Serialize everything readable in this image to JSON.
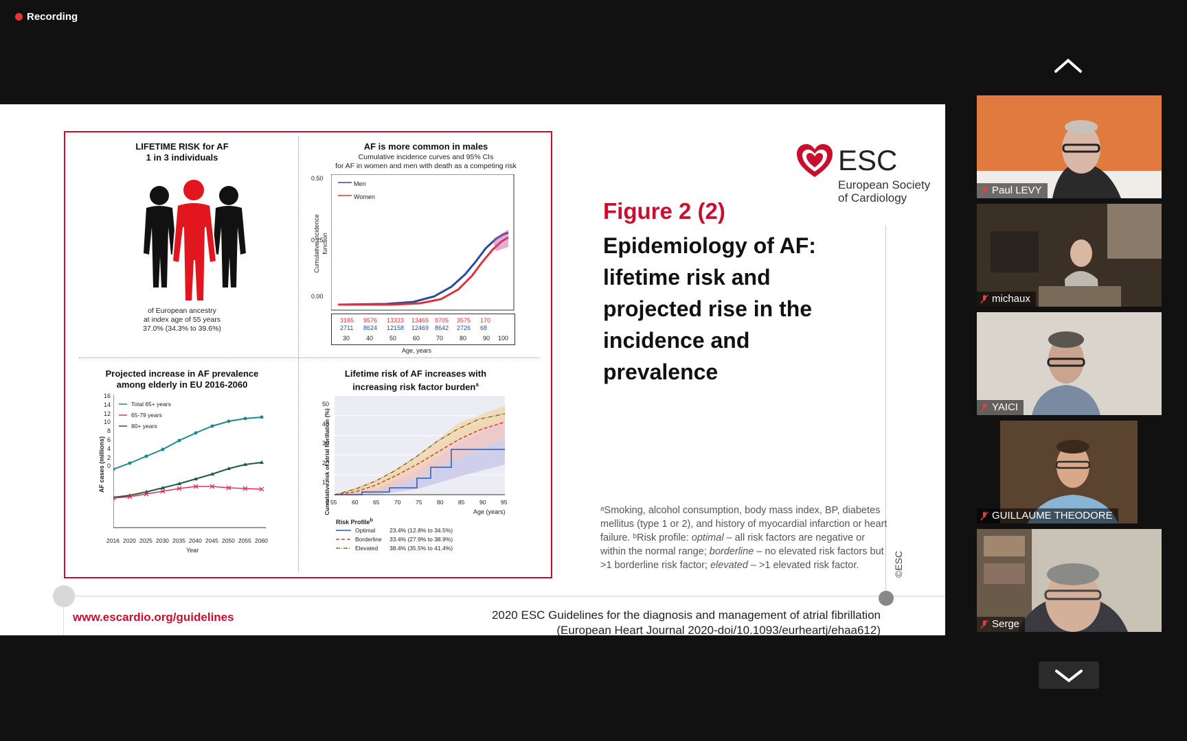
{
  "recording": {
    "label": "Recording"
  },
  "slide": {
    "lifetime": {
      "title1": "LIFETIME RISK for AF",
      "title2": "1 in 3 individuals",
      "desc1": "of European ancestry",
      "desc2": "at index age of 55 years",
      "desc3": "37.0% (34.3% to 39.6%)"
    },
    "males": {
      "title": "AF is more common in males",
      "sub1": "Cumulative incidence curves and 95% CIs",
      "sub2": "for AF in women and men with death as a competing risk",
      "ylabel": "Cumulative incidence function",
      "yticks": [
        "0.50",
        "0.25",
        "0.00"
      ],
      "legend": [
        "Men",
        "Women"
      ],
      "risk_women": [
        "3165",
        "9576",
        "13333",
        "13465",
        "9705",
        "3575",
        "170"
      ],
      "risk_men": [
        "2711",
        "8624",
        "12158",
        "12469",
        "8642",
        "2726",
        "68"
      ],
      "xticks": [
        "30",
        "40",
        "50",
        "60",
        "70",
        "80",
        "90",
        "100"
      ],
      "xlabel": "Age, years"
    },
    "prevalence": {
      "title1": "Projected increase in AF prevalence",
      "title2": "among elderly in EU 2016-2060",
      "ylabel": "AF cases (millions)",
      "xlabel": "Year",
      "yticks": [
        "16",
        "14",
        "12",
        "10",
        "8",
        "6",
        "4",
        "2",
        "0"
      ],
      "xticks": [
        "2016",
        "2020",
        "2025",
        "2030",
        "2035",
        "2040",
        "2045",
        "2050",
        "2055",
        "2060"
      ],
      "legend": [
        "Total 65+ years",
        "65-79 years",
        "80+ years"
      ]
    },
    "riskburden": {
      "title1": "Lifetime risk of AF increases with",
      "title2": "increasing risk factor burden",
      "title_sup": "a",
      "ylabel": "Cumulative risk of atrial fibrillation (%)",
      "xlabel": "Age (years)",
      "yticks": [
        "50",
        "40",
        "30",
        "20",
        "10",
        "0"
      ],
      "xticks": [
        "55",
        "60",
        "65",
        "70",
        "75",
        "80",
        "85",
        "90",
        "95"
      ],
      "profile_title": "Risk Profile",
      "profile_sup": "b",
      "profiles": [
        {
          "name": "Optimal",
          "value": "23.4% (12.8% to 34.5%)"
        },
        {
          "name": "Borderline",
          "value": "33.4% (27.9% to 38.9%)"
        },
        {
          "name": "Elevated",
          "value": "38.4% (35.5% to 41.4%)"
        }
      ]
    },
    "esc": {
      "name": "ESC",
      "sub1": "European Society",
      "sub2": "of Cardiology"
    },
    "figure_num": "Figure 2 (2)",
    "figure_title": "Epidemiology of AF: lifetime risk and projected rise in the incidence and prevalence",
    "footnote": {
      "a": "ᵃSmoking, alcohol consumption, body mass index, BP, diabetes mellitus (type 1 or 2), and history of myocardial infarction or heart failure. ᵇRisk profile: ",
      "optimal": "optimal",
      "b": " – all risk factors are negative or within the normal range; ",
      "borderline": "borderline",
      "c": " – no elevated risk factors but >1 borderline risk factor; ",
      "elevated": "elevated",
      "d": " – >1 elevated risk factor."
    },
    "copyright": "©ESC",
    "url": "www.escardio.org/guidelines",
    "cite1": "2020 ESC Guidelines for the diagnosis and management of atrial fibrillation",
    "cite2": "(European Heart Journal 2020-doi/10.1093/eurheartj/ehaa612)"
  },
  "participants": [
    {
      "name": "Paul LEVY",
      "bg": "#e07a3e"
    },
    {
      "name": "michaux",
      "bg": "#3b3026"
    },
    {
      "name": "YAICI",
      "bg": "#d9d4cc"
    },
    {
      "name": "GUILLAUME THEODORE",
      "bg": "#5a4430"
    },
    {
      "name": "Serge",
      "bg": "#c9c2b6"
    }
  ],
  "colors": {
    "esc_red": "#c8102e",
    "men": "#2a4a9a",
    "women": "#e0303a",
    "teal": "#1a8a8a",
    "green": "#1f5a3a",
    "pink": "#e0305a"
  }
}
